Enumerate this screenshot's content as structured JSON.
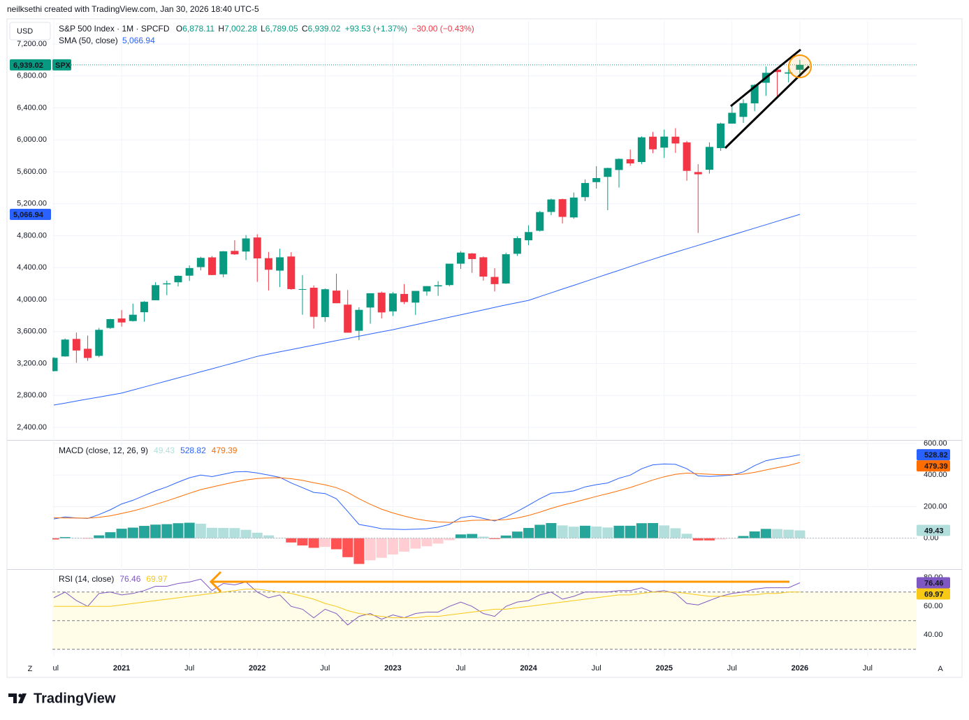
{
  "attribution": "neilksethi created with TradingView.com, Jan 30, 2026 18:40 UTC-5",
  "currency": "USD",
  "footer": {
    "left_button": "Z",
    "right_button": "A",
    "brand": "TradingView"
  },
  "chart_data": [
    {
      "type": "candlestick",
      "title": "S&P 500 Index · 1M · SPCFD",
      "symbol": "SPX",
      "legend": {
        "items": [
          {
            "key": "O",
            "value": "6,878.11"
          },
          {
            "key": "H",
            "value": "7,002.28"
          },
          {
            "key": "L",
            "value": "6,789.05"
          },
          {
            "key": "C",
            "value": "6,939.02"
          }
        ],
        "change": "+93.53 (+1.37%)",
        "change_after": "−30.00 (−0.43%)"
      },
      "categories": [
        "Jul",
        null,
        null,
        null,
        null,
        null,
        "2021",
        null,
        null,
        null,
        null,
        null,
        "Jul",
        null,
        null,
        null,
        null,
        null,
        "2022",
        null,
        null,
        null,
        null,
        null,
        "Jul",
        null,
        null,
        null,
        null,
        null,
        "2023",
        null,
        null,
        null,
        null,
        null,
        "Jul",
        null,
        null,
        null,
        null,
        null,
        "2024",
        null,
        null,
        null,
        null,
        null,
        "Jul",
        null,
        null,
        null,
        null,
        null,
        "2025",
        null,
        null,
        null,
        null,
        null,
        "Jul",
        null,
        null,
        null,
        null,
        null,
        "2026",
        null,
        null,
        null,
        null,
        null,
        "Jul"
      ],
      "open": [
        3105,
        3289,
        3508,
        3385,
        3296,
        3645,
        3764,
        3732,
        3842,
        3992,
        4191,
        4217,
        4300,
        4407,
        4529,
        4317,
        4610,
        4602,
        4778,
        4519,
        4363,
        4540,
        4130,
        4149,
        3781,
        4113,
        3937,
        3610,
        3901,
        4087,
        3853,
        4071,
        3963,
        4102,
        4166,
        4182,
        4450,
        4578,
        4530,
        4284,
        4202,
        4574,
        4743,
        4862,
        5098,
        5258,
        5029,
        5283,
        5471,
        5537,
        5623,
        5758,
        5723,
        6040,
        5903,
        6040,
        5969,
        5597,
        5626,
        5897,
        6204,
        6288,
        6457,
        6715,
        6880,
        6830,
        6878.11,
        null,
        null,
        null,
        null,
        null,
        null
      ],
      "high": [
        3280,
        3514,
        3588,
        3550,
        3646,
        3760,
        3870,
        3950,
        3981,
        4218,
        4238,
        4302,
        4429,
        4537,
        4546,
        4608,
        4743,
        4808,
        4819,
        4596,
        4637,
        4594,
        4307,
        4178,
        4140,
        4325,
        4120,
        3905,
        4080,
        4101,
        4095,
        4195,
        4110,
        4170,
        4231,
        4448,
        4607,
        4584,
        4541,
        4393,
        4587,
        4793,
        4931,
        5111,
        5265,
        5264,
        5342,
        5505,
        5670,
        5652,
        5768,
        5879,
        6045,
        6100,
        6129,
        6147,
        5987,
        5696,
        5969,
        6216,
        6427,
        6508,
        6699,
        6920,
        6890,
        6946,
        7002.28,
        null,
        null,
        null,
        null,
        null,
        null
      ],
      "low": [
        3101,
        3285,
        3209,
        3233,
        3279,
        3633,
        3662,
        3725,
        3723,
        3992,
        4056,
        4165,
        4234,
        4367,
        4306,
        4279,
        4560,
        4495,
        4223,
        4115,
        4157,
        4124,
        3811,
        3637,
        3722,
        3955,
        3585,
        3492,
        3699,
        3764,
        3795,
        3943,
        3809,
        4049,
        4048,
        4167,
        4385,
        4335,
        4238,
        4103,
        4197,
        4547,
        4682,
        4853,
        5057,
        4954,
        5011,
        5234,
        5391,
        5120,
        5403,
        5675,
        5696,
        5833,
        5774,
        5837,
        5489,
        4835,
        5578,
        5862,
        6202,
        6213,
        6360,
        6551,
        6521,
        6720,
        6789.05,
        null,
        null,
        null,
        null,
        null,
        null
      ],
      "close": [
        3271,
        3500,
        3363,
        3270,
        3622,
        3756,
        3714,
        3811,
        3973,
        4181,
        4204,
        4298,
        4395,
        4523,
        4308,
        4605,
        4567,
        4766,
        4516,
        4374,
        4530,
        4132,
        4132,
        3785,
        4130,
        3955,
        3586,
        3872,
        4080,
        3840,
        4077,
        3970,
        4109,
        4169,
        4180,
        4450,
        4589,
        4508,
        4288,
        4194,
        4568,
        4770,
        4846,
        5096,
        5254,
        5036,
        5278,
        5460,
        5522,
        5648,
        5762,
        5705,
        6032,
        5882,
        6041,
        5955,
        5612,
        5569,
        5912,
        6205,
        6339,
        6460,
        6688,
        6840,
        6849,
        6845,
        6939.02,
        null,
        null,
        null,
        null,
        null,
        null
      ],
      "up_color": "#089981",
      "down_color": "#f23645",
      "series": [
        {
          "name": "SMA (50, close)",
          "color": "#2962ff",
          "last_label": "5,066.94",
          "values": [
            2680,
            2705,
            2730,
            2755,
            2780,
            2805,
            2830,
            2868,
            2906,
            2944,
            2982,
            3020,
            3058,
            3096,
            3134,
            3172,
            3210,
            3250,
            3290,
            3318,
            3346,
            3374,
            3402,
            3430,
            3458,
            3486,
            3514,
            3542,
            3570,
            3597,
            3624,
            3655,
            3686,
            3717,
            3748,
            3779,
            3810,
            3841,
            3872,
            3903,
            3934,
            3962,
            3991,
            4038,
            4085,
            4132,
            4179,
            4226,
            4273,
            4320,
            4367,
            4414,
            4461,
            4506,
            4551,
            4594,
            4637,
            4680,
            4723,
            4766,
            4809,
            4852,
            4895,
            4938,
            4981,
            5024,
            5066.94,
            null,
            null,
            null,
            null,
            null,
            null
          ]
        }
      ],
      "ylim": [
        2243,
        7489
      ],
      "axis_side": "left",
      "grid": true,
      "yticks": [
        {
          "value": 2400,
          "label": "2,400.00"
        },
        {
          "value": 2800,
          "label": "2,800.00"
        },
        {
          "value": 3200,
          "label": "3,200.00"
        },
        {
          "value": 3600,
          "label": "3,600.00"
        },
        {
          "value": 4000,
          "label": "4,000.00"
        },
        {
          "value": 4400,
          "label": "4,400.00"
        },
        {
          "value": 4800,
          "label": "4,800.00"
        },
        {
          "value": 5200,
          "label": "5,200.00"
        },
        {
          "value": 5600,
          "label": "5,600.00"
        },
        {
          "value": 6000,
          "label": "6,000.00"
        },
        {
          "value": 6400,
          "label": "6,400.00"
        },
        {
          "value": 6800,
          "label": "6,800.00"
        },
        {
          "value": 7200,
          "label": "7,200.00"
        }
      ]
    },
    {
      "type": "line",
      "title": "MACD (close, 12, 26, 9)",
      "ylim": [
        -196,
        609
      ],
      "axis_side": "right",
      "grid": true,
      "yticks": [
        {
          "value": 0,
          "label": "0.00"
        },
        {
          "value": 200,
          "label": "200.00"
        },
        {
          "value": 400,
          "label": "400.00"
        },
        {
          "value": 600,
          "label": "600.00"
        }
      ],
      "histogram_colors": {
        "up_growing": "#26a69a",
        "up_falling": "#b2dfdb",
        "down_growing": "#ff5252",
        "down_falling": "#ffcdd2"
      },
      "series": [
        {
          "style": "histogram",
          "color": "#b2dfdb",
          "text_color": "#131722",
          "values": [
            -8,
            7,
            0,
            -2,
            18,
            38,
            60,
            67,
            78,
            86,
            89,
            95,
            98,
            92,
            66,
            65,
            64,
            53,
            35,
            18,
            2,
            -27,
            -46,
            -61,
            -55,
            -70,
            -120,
            -163,
            -140,
            -124,
            -103,
            -85,
            -66,
            -51,
            -34,
            -13,
            24,
            27,
            10,
            -5,
            17,
            42,
            65,
            85,
            96,
            81,
            73,
            79,
            74,
            68,
            79,
            79,
            95,
            96,
            81,
            63,
            28,
            -14,
            -14,
            -8,
            -2,
            14,
            43,
            59,
            58,
            54,
            49.43,
            null,
            null,
            null,
            null,
            null,
            null
          ]
        },
        {
          "style": "line",
          "color": "#2962ff",
          "text_color": "#ffffff",
          "values": [
            122,
            135,
            128,
            125,
            150,
            180,
            217,
            240,
            270,
            300,
            325,
            355,
            383,
            400,
            390,
            405,
            420,
            422,
            413,
            400,
            385,
            350,
            320,
            290,
            283,
            250,
            170,
            87,
            75,
            60,
            57,
            55,
            57,
            60,
            70,
            87,
            130,
            140,
            125,
            109,
            135,
            170,
            209,
            250,
            285,
            290,
            300,
            325,
            339,
            350,
            380,
            400,
            440,
            465,
            470,
            468,
            440,
            395,
            391,
            395,
            400,
            420,
            460,
            491,
            505,
            515,
            528.82,
            null,
            null,
            null,
            null,
            null,
            null
          ]
        },
        {
          "style": "line",
          "color": "#ff6d00",
          "text_color": "#ffffff",
          "values": [
            130,
            128,
            128,
            127,
            132,
            142,
            157,
            173,
            192,
            214,
            236,
            260,
            285,
            308,
            324,
            340,
            356,
            369,
            378,
            382,
            383,
            377,
            366,
            351,
            338,
            320,
            290,
            250,
            215,
            184,
            160,
            140,
            123,
            111,
            104,
            100,
            106,
            113,
            115,
            114,
            118,
            128,
            144,
            165,
            189,
            209,
            227,
            246,
            265,
            282,
            301,
            321,
            345,
            369,
            389,
            405,
            412,
            409,
            405,
            403,
            402,
            406,
            417,
            432,
            447,
            461,
            479.39,
            null,
            null,
            null,
            null,
            null,
            null
          ]
        }
      ]
    },
    {
      "type": "line",
      "title": "RSI (14, close)",
      "ylim": [
        25,
        85
      ],
      "axis_side": "right",
      "grid": false,
      "yticks": [
        {
          "value": 40,
          "label": "40.00"
        },
        {
          "value": 60,
          "label": "60.00"
        },
        {
          "value": 80,
          "label": "80.00"
        }
      ],
      "bands": [
        70,
        50,
        30
      ],
      "band_fill": "#fffde7",
      "series": [
        {
          "style": "line",
          "color": "#7e57c2",
          "text_color": "#ffffff",
          "values": [
            66,
            70,
            64,
            60,
            69,
            70,
            68,
            69,
            71,
            74,
            74,
            76,
            77,
            79,
            71,
            76,
            75,
            77,
            70,
            66,
            68,
            60,
            58,
            52,
            58,
            55,
            47,
            53,
            55,
            51,
            54,
            52,
            55,
            56,
            56,
            60,
            63,
            60,
            55,
            53,
            60,
            63,
            64,
            68,
            70,
            65,
            67,
            70,
            70,
            70,
            71,
            71,
            73,
            70,
            71,
            69,
            62,
            61,
            64,
            67,
            69,
            70,
            72,
            73,
            73,
            73,
            76.46,
            null,
            null,
            null,
            null,
            null,
            null
          ]
        },
        {
          "style": "line",
          "color": "#f7c815",
          "text_color": "#131722",
          "values": [
            60,
            60,
            60,
            60,
            60,
            60,
            61,
            62,
            63,
            64,
            65,
            66,
            67,
            68,
            69,
            70,
            71,
            72,
            72,
            71,
            70,
            69,
            67,
            65,
            62,
            60,
            57,
            55,
            54,
            53,
            52,
            52,
            52,
            53,
            53,
            54,
            55,
            56,
            57,
            58,
            58,
            59,
            60,
            61,
            62,
            63,
            64,
            65,
            66,
            67,
            68,
            68,
            69,
            70,
            70,
            70,
            69,
            68,
            67,
            67,
            67,
            68,
            68,
            69,
            69,
            70,
            69.97,
            null,
            null,
            null,
            null,
            null,
            null
          ]
        }
      ]
    }
  ]
}
